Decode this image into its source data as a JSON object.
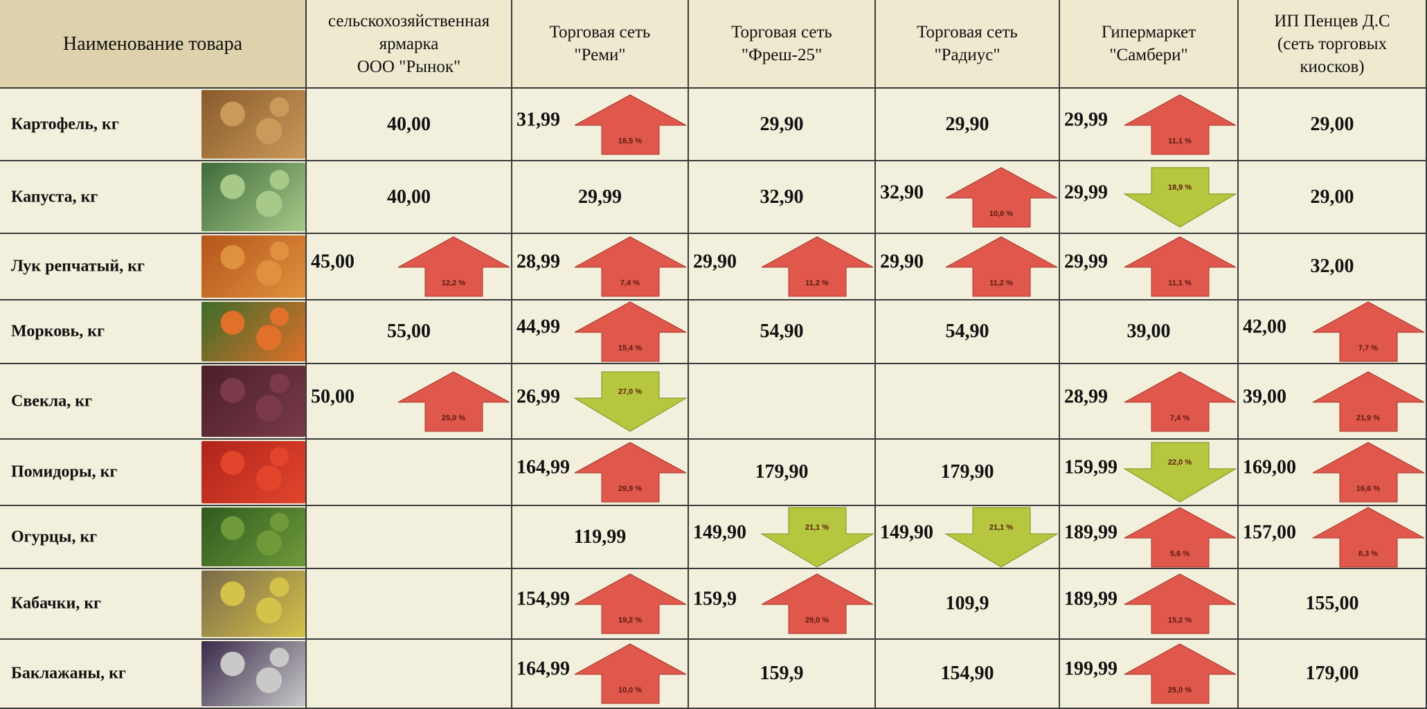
{
  "table": {
    "header": {
      "name": "Наименование товара",
      "columns": [
        {
          "lines": [
            "сельскохозяйственная",
            "ярмарка",
            "ООО \"Рынок\""
          ]
        },
        {
          "lines": [
            "Торговая сеть",
            "\"Реми\""
          ]
        },
        {
          "lines": [
            "Торговая сеть",
            "\"Фреш-25\""
          ]
        },
        {
          "lines": [
            "Торговая сеть",
            "\"Радиус\""
          ]
        },
        {
          "lines": [
            "Гипермаркет",
            "\"Самбери\""
          ]
        },
        {
          "lines": [
            "ИП Пенцев Д.С",
            "(сеть торговых",
            "киосков)"
          ]
        }
      ]
    },
    "rows": [
      {
        "name": "Картофель, кг",
        "cells": [
          {
            "price": "40,00"
          },
          {
            "price": "31,99",
            "change": {
              "direction": "up",
              "label": "18,5 %"
            }
          },
          {
            "price": "29,90"
          },
          {
            "price": "29,90"
          },
          {
            "price": "29,99",
            "change": {
              "direction": "up",
              "label": "11,1 %"
            }
          },
          {
            "price": "29,00"
          }
        ]
      },
      {
        "name": "Капуста, кг",
        "cells": [
          {
            "price": "40,00"
          },
          {
            "price": "29,99"
          },
          {
            "price": "32,90"
          },
          {
            "price": "32,90",
            "change": {
              "direction": "up",
              "label": "10,0 %"
            }
          },
          {
            "price": "29,99",
            "change": {
              "direction": "down",
              "label": "18,9 %"
            }
          },
          {
            "price": "29,00"
          }
        ]
      },
      {
        "name": "Лук репчатый, кг",
        "cells": [
          {
            "price": "45,00",
            "change": {
              "direction": "up",
              "label": "12,2 %"
            }
          },
          {
            "price": "28,99",
            "change": {
              "direction": "up",
              "label": "7,4 %"
            }
          },
          {
            "price": "29,90",
            "change": {
              "direction": "up",
              "label": "11,2 %"
            }
          },
          {
            "price": "29,90",
            "change": {
              "direction": "up",
              "label": "11,2 %"
            }
          },
          {
            "price": "29,99",
            "change": {
              "direction": "up",
              "label": "11,1 %"
            }
          },
          {
            "price": "32,00"
          }
        ]
      },
      {
        "name": "Морковь, кг",
        "cells": [
          {
            "price": "55,00"
          },
          {
            "price": "44,99",
            "change": {
              "direction": "up",
              "label": "15,4 %"
            }
          },
          {
            "price": "54,90"
          },
          {
            "price": "54,90"
          },
          {
            "price": "39,00"
          },
          {
            "price": "42,00",
            "change": {
              "direction": "up",
              "label": "7,7 %"
            }
          }
        ]
      },
      {
        "name": "Свекла, кг",
        "cells": [
          {
            "price": "50,00",
            "change": {
              "direction": "up",
              "label": "25,0 %"
            }
          },
          {
            "price": "26,99",
            "change": {
              "direction": "down",
              "label": "27,0 %"
            }
          },
          null,
          null,
          {
            "price": "28,99",
            "change": {
              "direction": "up",
              "label": "7,4 %"
            }
          },
          {
            "price": "39,00",
            "change": {
              "direction": "up",
              "label": "21,9 %"
            }
          }
        ]
      },
      {
        "name": "Помидоры, кг",
        "cells": [
          null,
          {
            "price": "164,99",
            "change": {
              "direction": "up",
              "label": "29,9 %"
            }
          },
          {
            "price": "179,90"
          },
          {
            "price": "179,90"
          },
          {
            "price": "159,99",
            "change": {
              "direction": "down",
              "label": "22,0 %"
            }
          },
          {
            "price": "169,00",
            "change": {
              "direction": "up",
              "label": "16,6 %"
            }
          }
        ]
      },
      {
        "name": "Огурцы, кг",
        "cells": [
          null,
          {
            "price": "119,99"
          },
          {
            "price": "149,90",
            "change": {
              "direction": "down",
              "label": "21,1 %"
            }
          },
          {
            "price": "149,90",
            "change": {
              "direction": "down",
              "label": "21,1 %"
            }
          },
          {
            "price": "189,99",
            "change": {
              "direction": "up",
              "label": "5,6 %"
            }
          },
          {
            "price": "157,00",
            "change": {
              "direction": "up",
              "label": "8,3 %"
            }
          }
        ]
      },
      {
        "name": "Кабачки, кг",
        "cells": [
          null,
          {
            "price": "154,99",
            "change": {
              "direction": "up",
              "label": "19,2 %"
            }
          },
          {
            "price": "159,9",
            "change": {
              "direction": "up",
              "label": "29,0 %"
            }
          },
          {
            "price": "109,9"
          },
          {
            "price": "189,99",
            "change": {
              "direction": "up",
              "label": "15,2 %"
            }
          },
          {
            "price": "155,00"
          }
        ]
      },
      {
        "name": "Баклажаны, кг",
        "cells": [
          null,
          {
            "price": "164,99",
            "change": {
              "direction": "up",
              "label": "10,0 %"
            }
          },
          {
            "price": "159,9"
          },
          {
            "price": "154,90"
          },
          {
            "price": "199,99",
            "change": {
              "direction": "up",
              "label": "25,0 %"
            }
          },
          {
            "price": "179,00"
          }
        ]
      }
    ]
  }
}
